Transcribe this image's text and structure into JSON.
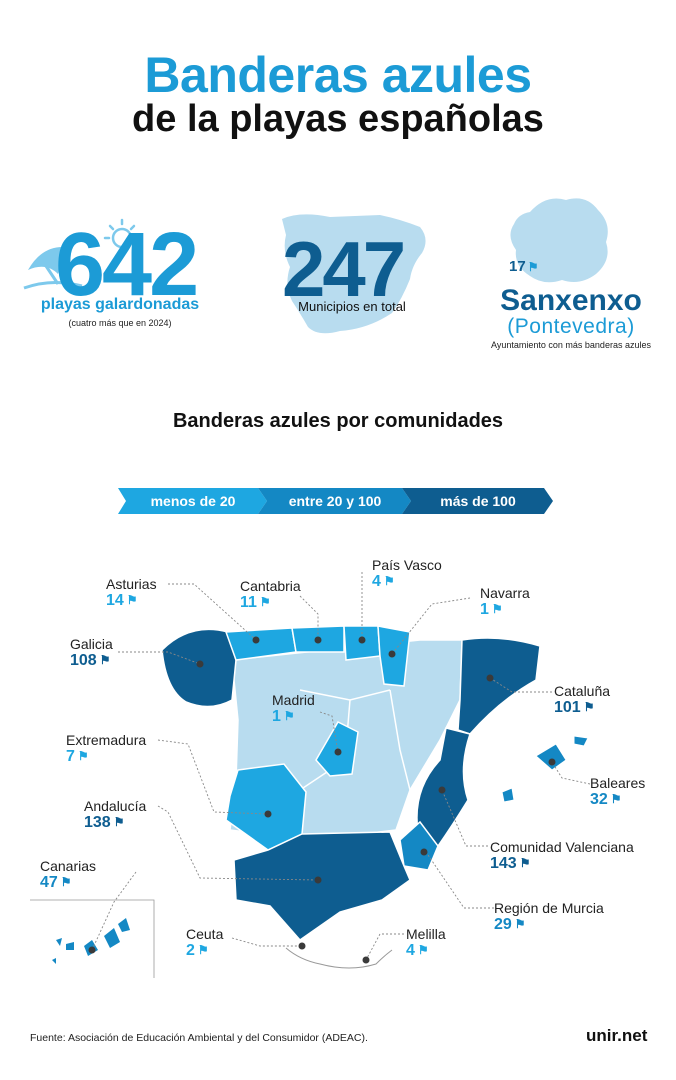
{
  "title": {
    "line1": "Banderas azules",
    "line2": "de la playas españolas"
  },
  "stats": [
    {
      "number": "642",
      "label": "playas galardonadas",
      "note": "(cuatro más que en 2024)",
      "icon": "beach-umbrella-sun-icon"
    },
    {
      "number": "247",
      "label": "Municipios en total",
      "icon": "spain-map-icon"
    },
    {
      "number": "17",
      "name": "Sanxenxo",
      "place": "(Pontevedra)",
      "note": "Ayuntamiento con más banderas azules",
      "icon": "galicia-map-icon"
    }
  ],
  "subtitle": "Banderas azules por comunidades",
  "legend": [
    {
      "label": "menos de 20",
      "color": "#1ea7e1"
    },
    {
      "label": "entre 20 y 100",
      "color": "#1488c4"
    },
    {
      "label": "más de 100",
      "color": "#0e5d90"
    }
  ],
  "colors": {
    "low": "#1ea7e1",
    "mid": "#1488c4",
    "high": "#0e5d90",
    "none": "#b8dcef",
    "accent": "#1c9bd6"
  },
  "chart_data": {
    "type": "map",
    "title": "Banderas azules por comunidades",
    "regions": [
      {
        "name": "Asturias",
        "value": "14",
        "category": "menos de 20"
      },
      {
        "name": "Cantabria",
        "value": "11",
        "category": "menos de 20"
      },
      {
        "name": "País Vasco",
        "value": "4",
        "category": "menos de 20"
      },
      {
        "name": "Navarra",
        "value": "1",
        "category": "menos de 20"
      },
      {
        "name": "Galicia",
        "value": "108",
        "category": "más de 100"
      },
      {
        "name": "Cataluña",
        "value": "101",
        "category": "más de 100"
      },
      {
        "name": "Madrid",
        "value": "1",
        "category": "menos de 20"
      },
      {
        "name": "Extremadura",
        "value": "7",
        "category": "menos de 20"
      },
      {
        "name": "Baleares",
        "value": "32",
        "category": "entre 20 y 100"
      },
      {
        "name": "Andalucía",
        "value": "138",
        "category": "más de 100"
      },
      {
        "name": "Comunidad Valenciana",
        "value": "143",
        "category": "más de 100"
      },
      {
        "name": "Canarias",
        "value": "47",
        "category": "entre 20 y 100"
      },
      {
        "name": "Región de Murcia",
        "value": "29",
        "category": "entre 20 y 100"
      },
      {
        "name": "Ceuta",
        "value": "2",
        "category": "menos de 20"
      },
      {
        "name": "Melilla",
        "value": "4",
        "category": "menos de 20"
      }
    ]
  },
  "footer": {
    "source": "Fuente: Asociación de Educación Ambiental y del Consumidor (ADEAC).",
    "logo": "unir.net"
  }
}
